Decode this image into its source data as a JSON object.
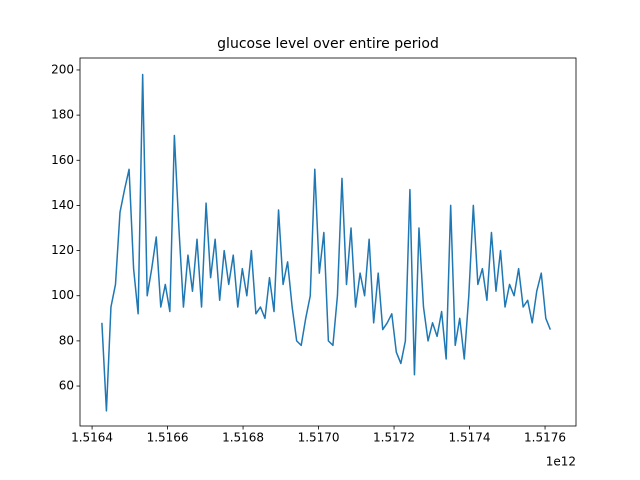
{
  "chart_data": {
    "type": "line",
    "title": "glucose level over entire period",
    "x_offset_label": "1e12",
    "x": [
      1516426000000,
      1516438000000,
      1516450000000,
      1516462000000,
      1516474000000,
      1516486000000,
      1516498000000,
      1516510000000,
      1516522000000,
      1516534000000,
      1516546000000,
      1516558000000,
      1516570000000,
      1516582000000,
      1516594000000,
      1516606000000,
      1516618000000,
      1516630000000,
      1516642000000,
      1516654000000,
      1516666000000,
      1516678000000,
      1516690000000,
      1516702000000,
      1516714000000,
      1516726000000,
      1516738000000,
      1516750000000,
      1516762000000,
      1516774000000,
      1516786000000,
      1516798000000,
      1516810000000,
      1516822000000,
      1516834000000,
      1516846000000,
      1516858000000,
      1516870000000,
      1516882000000,
      1516894000000,
      1516906000000,
      1516918000000,
      1516930000000,
      1516942000000,
      1516954000000,
      1516966000000,
      1516978000000,
      1516990000000,
      1517002000000,
      1517014000000,
      1517026000000,
      1517038000000,
      1517050000000,
      1517062000000,
      1517074000000,
      1517086000000,
      1517098000000,
      1517110000000,
      1517122000000,
      1517134000000,
      1517146000000,
      1517158000000,
      1517170000000,
      1517182000000,
      1517194000000,
      1517206000000,
      1517218000000,
      1517230000000,
      1517242000000,
      1517254000000,
      1517266000000,
      1517278000000,
      1517290000000,
      1517302000000,
      1517314000000,
      1517326000000,
      1517338000000,
      1517350000000,
      1517362000000,
      1517374000000,
      1517386000000,
      1517398000000,
      1517410000000,
      1517422000000,
      1517434000000,
      1517446000000,
      1517458000000,
      1517470000000,
      1517482000000,
      1517494000000,
      1517506000000,
      1517518000000,
      1517530000000,
      1517542000000,
      1517554000000,
      1517566000000,
      1517578000000,
      1517590000000,
      1517602000000,
      1517614000000
    ],
    "series": [
      {
        "color": "#1f77b4",
        "values": [
          88,
          49,
          95,
          105,
          137,
          147,
          156,
          112,
          92,
          198,
          100,
          112,
          126,
          95,
          105,
          93,
          171,
          130,
          95,
          118,
          102,
          125,
          95,
          141,
          108,
          125,
          98,
          120,
          105,
          118,
          95,
          112,
          100,
          120,
          92,
          95,
          90,
          108,
          93,
          138,
          105,
          115,
          95,
          80,
          78,
          90,
          100,
          156,
          110,
          128,
          80,
          78,
          100,
          152,
          105,
          130,
          95,
          110,
          100,
          125,
          88,
          110,
          85,
          88,
          92,
          75,
          70,
          80,
          147,
          65,
          130,
          95,
          80,
          88,
          82,
          93,
          72,
          140,
          78,
          90,
          72,
          100,
          140,
          105,
          112,
          98,
          128,
          102,
          120,
          95,
          105,
          100,
          112,
          95,
          98,
          88,
          102,
          110,
          90,
          85
        ]
      }
    ],
    "xlim": [
      1516368000000,
      1517682000000
    ],
    "ylim": [
      42.3,
      205.3
    ],
    "xticks": [
      {
        "value": 1516400000000,
        "label": "1.5164"
      },
      {
        "value": 1516600000000,
        "label": "1.5166"
      },
      {
        "value": 1516800000000,
        "label": "1.5168"
      },
      {
        "value": 1517000000000,
        "label": "1.5170"
      },
      {
        "value": 1517200000000,
        "label": "1.5172"
      },
      {
        "value": 1517400000000,
        "label": "1.5174"
      },
      {
        "value": 1517600000000,
        "label": "1.5176"
      }
    ],
    "yticks": [
      60,
      80,
      100,
      120,
      140,
      160,
      180,
      200
    ]
  }
}
